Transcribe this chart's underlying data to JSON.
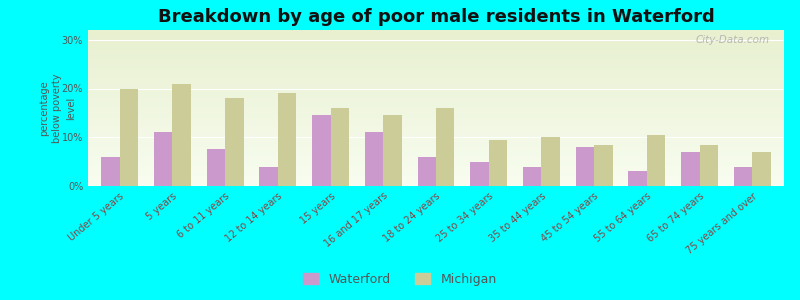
{
  "title": "Breakdown by age of poor male residents in Waterford",
  "ylabel": "percentage\nbelow poverty\nlevel",
  "categories": [
    "Under 5 years",
    "5 years",
    "6 to 11 years",
    "12 to 14 years",
    "15 years",
    "16 and 17 years",
    "18 to 24 years",
    "25 to 34 years",
    "35 to 44 years",
    "45 to 54 years",
    "55 to 64 years",
    "65 to 74 years",
    "75 years and over"
  ],
  "waterford": [
    6,
    11,
    7.5,
    4,
    14.5,
    11,
    6,
    5,
    4,
    8,
    3,
    7,
    4
  ],
  "michigan": [
    20,
    21,
    18,
    19,
    16,
    14.5,
    16,
    9.5,
    10,
    8.5,
    10.5,
    8.5,
    7
  ],
  "waterford_color": "#cc99cc",
  "michigan_color": "#cccc99",
  "background_color": "#00ffff",
  "ylim": [
    0,
    32
  ],
  "yticks": [
    0,
    10,
    20,
    30
  ],
  "ytick_labels": [
    "0%",
    "10%",
    "20%",
    "30%"
  ],
  "title_fontsize": 13,
  "label_fontsize": 7,
  "tick_fontsize": 7,
  "watermark": "City-Data.com"
}
